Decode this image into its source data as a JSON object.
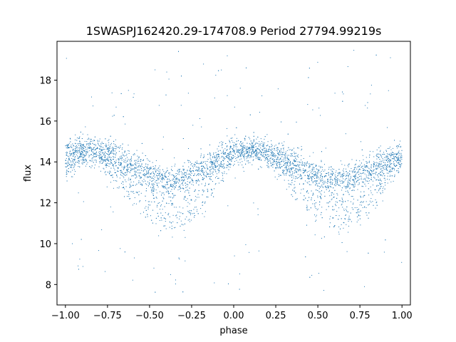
{
  "chart_data": {
    "type": "scatter",
    "title": "1SWASPJ162420.29-174708.9 Period 27794.99219s",
    "xlabel": "phase",
    "ylabel": "flux",
    "xlim": [
      -1.05,
      1.05
    ],
    "ylim": [
      7.0,
      19.9
    ],
    "xticks": [
      -1.0,
      -0.75,
      -0.5,
      -0.25,
      0.0,
      0.25,
      0.5,
      0.75,
      1.0
    ],
    "xtick_labels": [
      "−1.00",
      "−0.75",
      "−0.50",
      "−0.25",
      "0.00",
      "0.25",
      "0.50",
      "0.75",
      "1.00"
    ],
    "yticks": [
      8,
      10,
      12,
      14,
      16,
      18
    ],
    "ytick_labels": [
      "8",
      "10",
      "12",
      "14",
      "16",
      "18"
    ],
    "grid": false,
    "marker_color": "#1f77b4",
    "series": [
      {
        "phase": [
          -1.0,
          -0.9,
          -0.8,
          -0.7,
          -0.6,
          -0.5,
          -0.4,
          -0.3,
          -0.2,
          -0.1,
          0.0,
          0.1,
          0.2,
          0.3,
          0.4,
          0.5,
          0.6,
          0.7,
          0.8,
          0.9,
          1.0
        ],
        "flux_upper_band": [
          14.4,
          14.6,
          14.6,
          14.3,
          13.9,
          13.4,
          13.1,
          13.2,
          13.6,
          14.1,
          14.5,
          14.6,
          14.5,
          14.2,
          13.8,
          13.3,
          13.1,
          13.2,
          13.6,
          14.0,
          14.4
        ],
        "flux_lower_band": [
          13.0,
          14.2,
          14.0,
          13.0,
          12.0,
          11.2,
          10.8,
          10.9,
          11.4,
          12.8,
          14.2,
          14.4,
          14.1,
          13.2,
          12.0,
          11.2,
          10.8,
          10.9,
          11.5,
          12.8,
          13.8
        ]
      }
    ],
    "flux_range": [
      7.6,
      19.6
    ]
  }
}
